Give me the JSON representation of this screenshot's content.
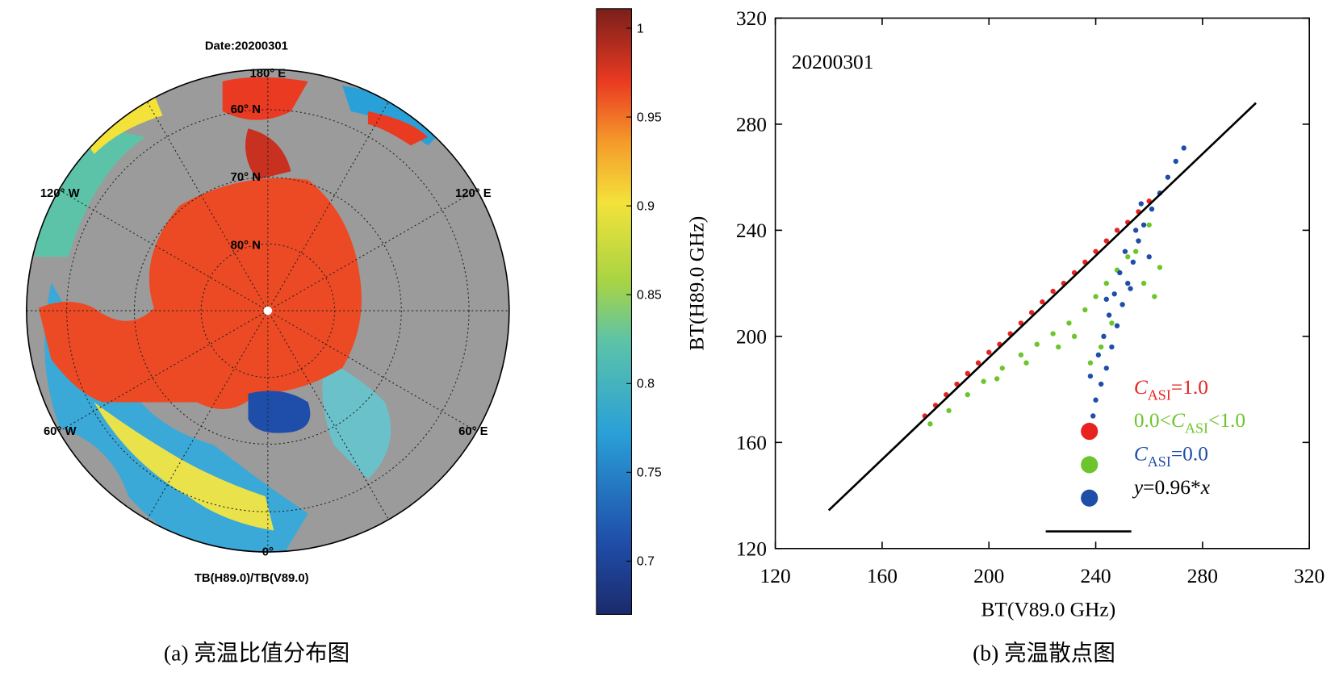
{
  "chart_data": [
    {
      "type": "map",
      "title": "Date:20200301",
      "xlabel": "TB(H89.0)/TB(V89.0)",
      "labels": [
        "180° E",
        "60° N",
        "70° N",
        "80° N",
        "120° W",
        "120° E",
        "60° W",
        "60° E",
        "0°"
      ],
      "colorbar": {
        "clim": [
          0.67,
          1.011
        ],
        "ticks": [
          0.7,
          0.75,
          0.8,
          0.85,
          0.9,
          0.95,
          1
        ]
      },
      "caption": "(a) 亮温比值分布图"
    },
    {
      "type": "scatter",
      "annotation": "20200301",
      "xlabel": "BT(V89.0 GHz)",
      "ylabel": "BT(H89.0 GHz)",
      "xlim": [
        120,
        320
      ],
      "ylim": [
        120,
        320
      ],
      "xticks": [
        120,
        160,
        200,
        240,
        280,
        320
      ],
      "yticks": [
        120,
        160,
        200,
        240,
        280,
        320
      ],
      "caption": "(b) 亮温散点图",
      "series": [
        {
          "name": [
            {
              "text": "C",
              "italic": true
            },
            {
              "text": "ASI",
              "sub": true
            },
            {
              "text": "=1.0"
            }
          ],
          "color": "#e8231f",
          "type": "scatter",
          "x": [
            176,
            180,
            184,
            188,
            192,
            196,
            200,
            204,
            208,
            212,
            216,
            220,
            224,
            228,
            232,
            236,
            240,
            244,
            248,
            252,
            256,
            260
          ],
          "y": [
            170,
            174,
            178,
            182,
            186,
            190,
            194,
            197,
            201,
            205,
            209,
            213,
            217,
            220,
            224,
            228,
            232,
            236,
            240,
            243,
            247,
            251
          ]
        },
        {
          "name": [
            {
              "text": "0.0<"
            },
            {
              "text": "C",
              "italic": true
            },
            {
              "text": "ASI",
              "sub": true
            },
            {
              "text": "<1.0"
            }
          ],
          "color": "#6cc52c",
          "type": "scatter",
          "x": [
            178,
            185,
            192,
            198,
            205,
            212,
            218,
            224,
            230,
            236,
            240,
            244,
            248,
            252,
            256,
            260,
            264,
            262,
            258,
            250,
            246,
            242,
            238,
            255,
            226,
            232,
            214,
            203
          ],
          "y": [
            167,
            172,
            178,
            183,
            188,
            193,
            197,
            201,
            205,
            210,
            215,
            220,
            225,
            230,
            236,
            242,
            226,
            215,
            220,
            212,
            205,
            196,
            190,
            232,
            196,
            200,
            190,
            184
          ]
        },
        {
          "name": [
            {
              "text": "C",
              "italic": true
            },
            {
              "text": "ASI",
              "sub": true
            },
            {
              "text": "=0.0"
            }
          ],
          "color": "#1f4ea8",
          "type": "scatter",
          "x": [
            239,
            240,
            242,
            238,
            244,
            241,
            246,
            243,
            248,
            245,
            250,
            247,
            252,
            249,
            254,
            251,
            256,
            258,
            261,
            264,
            267,
            270,
            273,
            255,
            253,
            260,
            244,
            257
          ],
          "y": [
            170,
            176,
            182,
            185,
            188,
            193,
            196,
            200,
            204,
            208,
            212,
            216,
            220,
            224,
            228,
            232,
            236,
            242,
            248,
            254,
            260,
            266,
            271,
            240,
            218,
            230,
            214,
            250
          ]
        },
        {
          "name": [
            {
              "text": "y",
              "italic": true
            },
            {
              "text": "=0.96*"
            },
            {
              "text": "x",
              "italic": true
            }
          ],
          "color": "#000000",
          "type": "line",
          "x": [
            140,
            300
          ],
          "y": [
            134.4,
            288
          ]
        }
      ]
    }
  ]
}
